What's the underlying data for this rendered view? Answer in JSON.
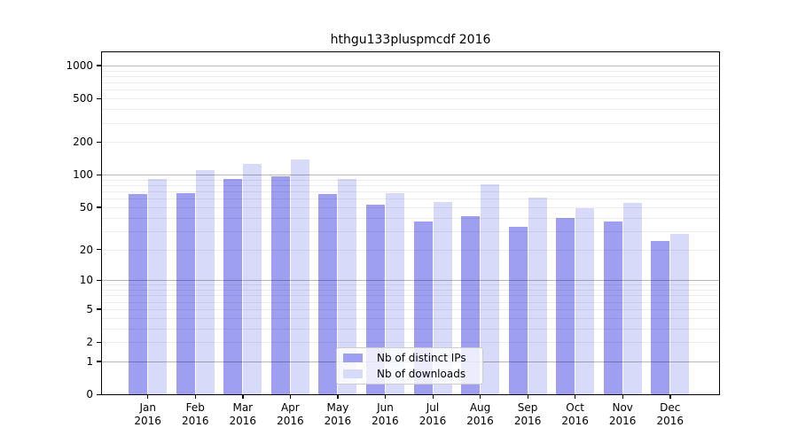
{
  "chart_data": {
    "type": "bar",
    "title": "hthgu133pluspmcdf 2016",
    "categories": [
      "Jan",
      "Feb",
      "Mar",
      "Apr",
      "May",
      "Jun",
      "Jul",
      "Aug",
      "Sep",
      "Oct",
      "Nov",
      "Dec"
    ],
    "x_year": "2016",
    "series": [
      {
        "name": "Nb of distinct IPs",
        "color": "#9e9ff1",
        "values": [
          66,
          68,
          91,
          96,
          66,
          53,
          37,
          41,
          33,
          40,
          37,
          24
        ]
      },
      {
        "name": "Nb of downloads",
        "color": "#d8daf9",
        "values": [
          92,
          111,
          125,
          137,
          92,
          68,
          56,
          82,
          62,
          49,
          55,
          28
        ]
      }
    ],
    "y_scale": "log10(value+1)",
    "ylim": [
      0,
      1320
    ],
    "y_ticks": [
      1000,
      500,
      200,
      100,
      50,
      20,
      10,
      5,
      2,
      1,
      0
    ],
    "y_major_gridlines": [
      1,
      10,
      100,
      1000
    ],
    "y_minor_gridlines": [
      2,
      3,
      4,
      5,
      6,
      7,
      8,
      9,
      20,
      30,
      40,
      50,
      60,
      70,
      80,
      90,
      200,
      300,
      400,
      500,
      600,
      700,
      800,
      900
    ],
    "grid_minor_color": "rgba(0,0,0,0.075)",
    "grid_major_color": "rgba(0,0,0,0.28)",
    "spine_color": "#000000",
    "text_color": "#000000",
    "background_color": "#ffffff",
    "grid": "horizontal, drawn over bars",
    "legend_position": "inside bottom-center"
  }
}
